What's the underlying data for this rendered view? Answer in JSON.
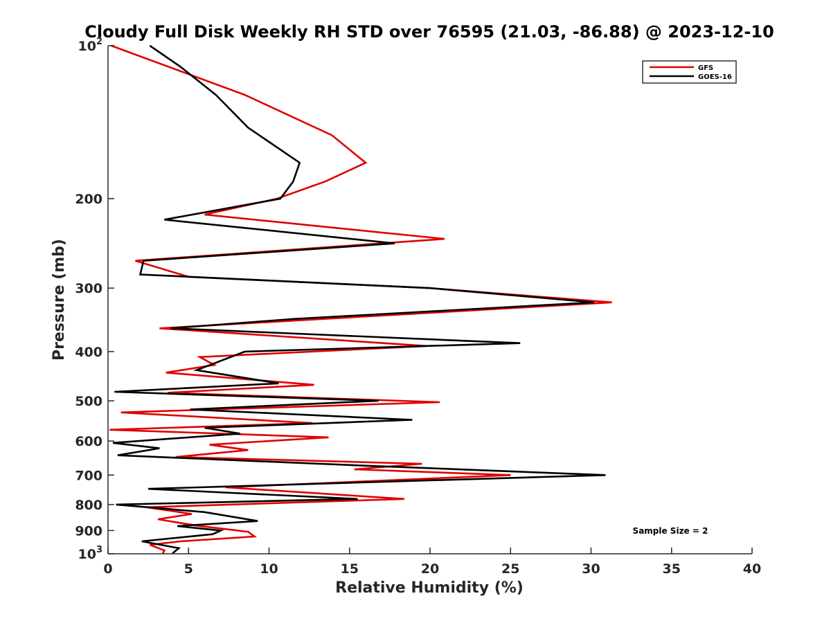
{
  "chart_data": {
    "type": "line",
    "title": "Cloudy Full Disk Weekly RH STD over 76595 (21.03, -86.88) @ 2023-12-10",
    "xlabel": "Relative Humidity (%)",
    "ylabel": "Pressure (mb)",
    "xlim": [
      0,
      40
    ],
    "ylim": [
      100,
      1000
    ],
    "yscale": "log",
    "y_reversed": true,
    "x_ticks": [
      "0",
      "5",
      "10",
      "15",
      "20",
      "25",
      "30",
      "35",
      "40"
    ],
    "x_tick_values": [
      0,
      5,
      10,
      15,
      20,
      25,
      30,
      35,
      40
    ],
    "y_ticks": [
      {
        "value": 100,
        "base": "10",
        "exp": "2"
      },
      {
        "value": 200,
        "label": "200"
      },
      {
        "value": 300,
        "label": "300"
      },
      {
        "value": 400,
        "label": "400"
      },
      {
        "value": 500,
        "label": "500"
      },
      {
        "value": 600,
        "label": "600"
      },
      {
        "value": 700,
        "label": "700"
      },
      {
        "value": 800,
        "label": "800"
      },
      {
        "value": 900,
        "label": "900"
      },
      {
        "value": 1000,
        "base": "10",
        "exp": "3"
      }
    ],
    "legend_position": "top-right",
    "annotation": "Sample Size = 2",
    "series": [
      {
        "name": "GFS",
        "color": "#e00000",
        "points": [
          [
            0.2,
            100
          ],
          [
            8.5,
            125
          ],
          [
            13.9,
            150
          ],
          [
            16.0,
            170
          ],
          [
            13.5,
            185
          ],
          [
            10.5,
            200
          ],
          [
            6.0,
            215
          ],
          [
            20.9,
            240
          ],
          [
            1.7,
            265
          ],
          [
            5.0,
            285
          ],
          [
            20.0,
            300
          ],
          [
            31.3,
            320
          ],
          [
            3.2,
            360
          ],
          [
            19.8,
            390
          ],
          [
            5.7,
            410
          ],
          [
            6.6,
            425
          ],
          [
            3.6,
            440
          ],
          [
            12.8,
            465
          ],
          [
            3.7,
            482
          ],
          [
            20.6,
            503
          ],
          [
            0.8,
            527
          ],
          [
            12.7,
            553
          ],
          [
            0.1,
            570
          ],
          [
            13.7,
            590
          ],
          [
            6.3,
            610
          ],
          [
            8.7,
            625
          ],
          [
            4.2,
            645
          ],
          [
            19.5,
            665
          ],
          [
            15.3,
            682
          ],
          [
            25.0,
            700
          ],
          [
            7.3,
            740
          ],
          [
            18.4,
            780
          ],
          [
            2.4,
            810
          ],
          [
            5.2,
            835
          ],
          [
            3.1,
            855
          ],
          [
            5.5,
            880
          ],
          [
            8.7,
            905
          ],
          [
            9.1,
            925
          ],
          [
            4.5,
            945
          ],
          [
            2.6,
            960
          ],
          [
            3.5,
            985
          ],
          [
            3.4,
            998
          ]
        ]
      },
      {
        "name": "GOES-16",
        "color": "#000000",
        "points": [
          [
            2.6,
            100
          ],
          [
            4.5,
            110
          ],
          [
            6.7,
            125
          ],
          [
            8.7,
            145
          ],
          [
            11.9,
            170
          ],
          [
            11.5,
            185
          ],
          [
            10.7,
            200
          ],
          [
            3.5,
            220
          ],
          [
            17.8,
            245
          ],
          [
            2.2,
            265
          ],
          [
            2.0,
            282
          ],
          [
            20.0,
            300
          ],
          [
            30.2,
            320
          ],
          [
            11.5,
            345
          ],
          [
            3.9,
            360
          ],
          [
            25.6,
            385
          ],
          [
            8.5,
            400
          ],
          [
            5.5,
            435
          ],
          [
            10.6,
            462
          ],
          [
            0.4,
            480
          ],
          [
            16.8,
            500
          ],
          [
            5.1,
            520
          ],
          [
            18.9,
            545
          ],
          [
            6.0,
            565
          ],
          [
            8.2,
            580
          ],
          [
            0.3,
            605
          ],
          [
            3.2,
            620
          ],
          [
            0.6,
            640
          ],
          [
            15.5,
            670
          ],
          [
            30.9,
            700
          ],
          [
            2.5,
            745
          ],
          [
            15.5,
            780
          ],
          [
            0.5,
            800
          ],
          [
            6.0,
            828
          ],
          [
            9.3,
            862
          ],
          [
            4.3,
            882
          ],
          [
            7.0,
            900
          ],
          [
            6.5,
            915
          ],
          [
            2.1,
            945
          ],
          [
            4.4,
            975
          ],
          [
            4.0,
            998
          ]
        ]
      }
    ]
  }
}
